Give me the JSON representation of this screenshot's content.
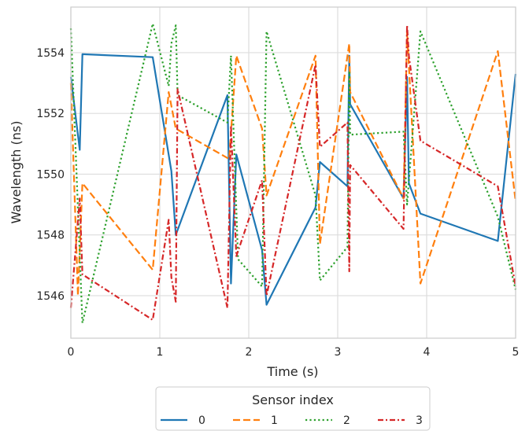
{
  "chart_data": {
    "type": "line",
    "xlabel": "Time (s)",
    "ylabel": "Wavelength (ns)",
    "xlim": [
      0,
      5
    ],
    "ylim": [
      1544.6,
      1555.5
    ],
    "xticks": [
      0,
      1,
      2,
      3,
      4,
      5
    ],
    "yticks": [
      1546,
      1548,
      1550,
      1552,
      1554
    ],
    "grid": true,
    "legend": {
      "title": "Sensor index",
      "placement": "bottom-center"
    },
    "series": [
      {
        "name": "0",
        "color": "#1f77b4",
        "dash": "solid",
        "points": [
          [
            0.0,
            1553.2
          ],
          [
            0.1,
            1550.8
          ],
          [
            0.13,
            1553.95
          ],
          [
            0.92,
            1553.85
          ],
          [
            1.13,
            1550.1
          ],
          [
            1.18,
            1548.0
          ],
          [
            1.76,
            1552.6
          ],
          [
            1.8,
            1546.4
          ],
          [
            1.86,
            1550.65
          ],
          [
            2.15,
            1547.5
          ],
          [
            2.2,
            1545.7
          ],
          [
            2.75,
            1548.9
          ],
          [
            2.8,
            1550.4
          ],
          [
            3.11,
            1549.6
          ],
          [
            3.13,
            1553.9
          ],
          [
            3.14,
            1552.3
          ],
          [
            3.74,
            1549.2
          ],
          [
            3.78,
            1553.2
          ],
          [
            3.8,
            1549.7
          ],
          [
            3.93,
            1548.7
          ],
          [
            4.8,
            1547.8
          ],
          [
            5.0,
            1553.3
          ]
        ]
      },
      {
        "name": "1",
        "color": "#ff7f0e",
        "dash": "dashed",
        "points": [
          [
            0.0,
            1553.0
          ],
          [
            0.08,
            1546.0
          ],
          [
            0.13,
            1549.7
          ],
          [
            0.92,
            1546.85
          ],
          [
            1.1,
            1552.7
          ],
          [
            1.18,
            1551.5
          ],
          [
            1.78,
            1550.5
          ],
          [
            1.86,
            1553.9
          ],
          [
            2.15,
            1551.5
          ],
          [
            2.2,
            1549.3
          ],
          [
            2.75,
            1553.9
          ],
          [
            2.8,
            1547.7
          ],
          [
            3.13,
            1554.3
          ],
          [
            3.14,
            1552.7
          ],
          [
            3.74,
            1549.2
          ],
          [
            3.78,
            1554.7
          ],
          [
            3.93,
            1546.4
          ],
          [
            4.8,
            1554.05
          ],
          [
            5.0,
            1549.1
          ]
        ]
      },
      {
        "name": "2",
        "color": "#2ca02c",
        "dash": "dotted",
        "points": [
          [
            0.0,
            1554.8
          ],
          [
            0.13,
            1545.1
          ],
          [
            0.92,
            1554.95
          ],
          [
            1.1,
            1552.9
          ],
          [
            1.13,
            1554.3
          ],
          [
            1.18,
            1554.9
          ],
          [
            1.2,
            1552.6
          ],
          [
            1.76,
            1551.7
          ],
          [
            1.8,
            1553.9
          ],
          [
            1.88,
            1547.2
          ],
          [
            2.15,
            1546.3
          ],
          [
            2.2,
            1554.7
          ],
          [
            2.75,
            1549.3
          ],
          [
            2.8,
            1546.5
          ],
          [
            3.11,
            1547.6
          ],
          [
            3.13,
            1553.4
          ],
          [
            3.14,
            1551.3
          ],
          [
            3.74,
            1551.4
          ],
          [
            3.78,
            1549.0
          ],
          [
            3.93,
            1554.7
          ],
          [
            4.8,
            1548.6
          ],
          [
            5.0,
            1546.2
          ]
        ]
      },
      {
        "name": "3",
        "color": "#d62728",
        "dash": "dashdot",
        "points": [
          [
            0.0,
            1545.6
          ],
          [
            0.1,
            1549.2
          ],
          [
            0.13,
            1546.7
          ],
          [
            0.92,
            1545.2
          ],
          [
            1.1,
            1548.5
          ],
          [
            1.13,
            1546.6
          ],
          [
            1.18,
            1545.8
          ],
          [
            1.2,
            1552.8
          ],
          [
            1.76,
            1545.6
          ],
          [
            1.8,
            1551.6
          ],
          [
            1.86,
            1547.3
          ],
          [
            2.15,
            1549.8
          ],
          [
            2.2,
            1546.0
          ],
          [
            2.75,
            1553.6
          ],
          [
            2.8,
            1550.9
          ],
          [
            3.11,
            1551.7
          ],
          [
            3.13,
            1546.8
          ],
          [
            3.14,
            1550.3
          ],
          [
            3.74,
            1548.2
          ],
          [
            3.78,
            1554.9
          ],
          [
            3.8,
            1553.9
          ],
          [
            3.93,
            1551.1
          ],
          [
            4.8,
            1549.6
          ],
          [
            5.0,
            1546.3
          ]
        ]
      }
    ]
  }
}
